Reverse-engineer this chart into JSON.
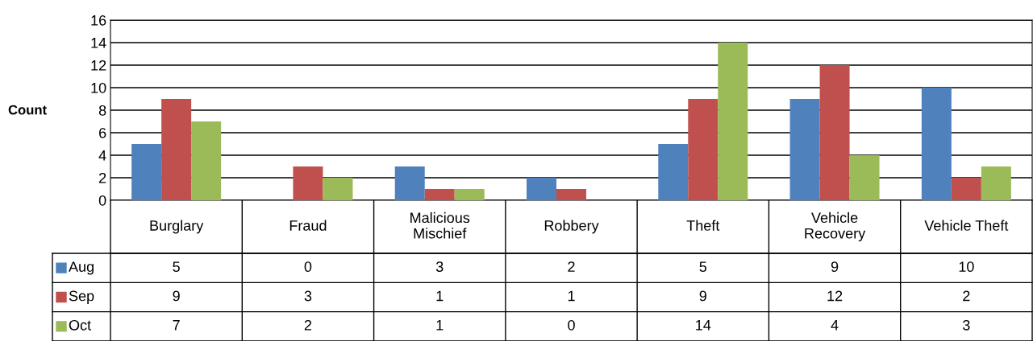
{
  "chart_data": {
    "type": "bar",
    "ylabel": "Count",
    "categories": [
      "Burglary",
      "Fraud",
      "Malicious Mischief",
      "Robbery",
      "Theft",
      "Vehicle Recovery",
      "Vehicle Theft"
    ],
    "series": [
      {
        "name": "Aug",
        "color": "#4f81bd",
        "values": [
          5,
          0,
          3,
          2,
          5,
          9,
          10
        ]
      },
      {
        "name": "Sep",
        "color": "#c0504d",
        "values": [
          9,
          3,
          1,
          1,
          9,
          12,
          2
        ]
      },
      {
        "name": "Oct",
        "color": "#9bbb59",
        "values": [
          7,
          2,
          1,
          0,
          14,
          4,
          3
        ]
      }
    ],
    "ylim": [
      0,
      16
    ],
    "yticks": [
      0,
      2,
      4,
      6,
      8,
      10,
      12,
      14,
      16
    ],
    "grid": "y",
    "data_labels": true,
    "legend": "bottom"
  }
}
